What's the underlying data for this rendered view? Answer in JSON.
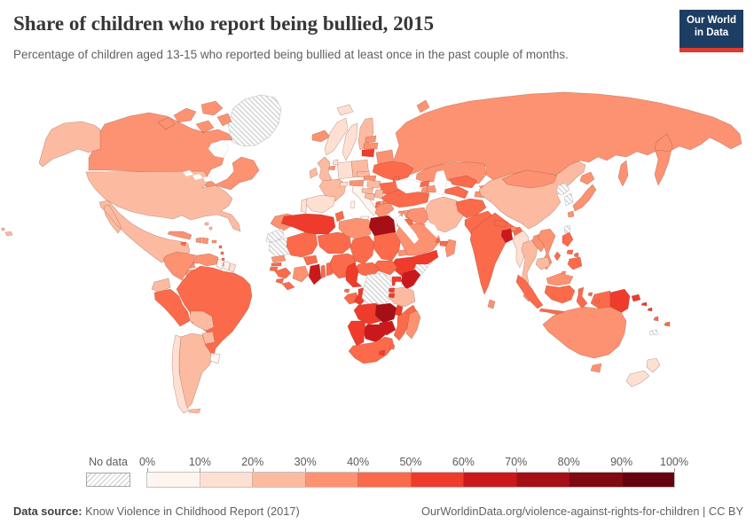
{
  "header": {
    "title": "Share of children who report being bullied, 2015",
    "subtitle": "Percentage of children aged 13-15 who reported being bullied at least once in the past couple of months."
  },
  "logo": {
    "line1": "Our World",
    "line2": "in Data",
    "bg_color": "#1d3d63",
    "accent_color": "#dc3b2f"
  },
  "legend": {
    "no_data_label": "No data",
    "tick_labels": [
      "0%",
      "10%",
      "20%",
      "30%",
      "40%",
      "50%",
      "60%",
      "70%",
      "80%",
      "90%",
      "100%"
    ]
  },
  "footer": {
    "source_label": "Data source:",
    "source": "Know Violence in Childhood Report (2017)",
    "url": "OurWorldinData.org/violence-against-rights-for-children",
    "separator": "|",
    "license": "CC BY"
  },
  "chart_data": {
    "type": "heatmap",
    "subtype": "choropleth-world-map",
    "title": "Share of children who report being bullied, 2015",
    "subtitle": "Percentage of children aged 13-15 who reported being bullied at least once in the past couple of months.",
    "unit": "%",
    "year": 2015,
    "legend_position": "bottom",
    "no_data_style": "diagonal-hatch",
    "bins": [
      {
        "min": 0,
        "max": 10,
        "color": "#fff5f0"
      },
      {
        "min": 10,
        "max": 20,
        "color": "#fee0d2"
      },
      {
        "min": 20,
        "max": 30,
        "color": "#fcbba1"
      },
      {
        "min": 30,
        "max": 40,
        "color": "#fc9272"
      },
      {
        "min": 40,
        "max": 50,
        "color": "#fb6a4a"
      },
      {
        "min": 50,
        "max": 60,
        "color": "#ef3b2c"
      },
      {
        "min": 60,
        "max": 70,
        "color": "#cb181d"
      },
      {
        "min": 70,
        "max": 80,
        "color": "#a50f15"
      },
      {
        "min": 80,
        "max": 90,
        "color": "#7f0a10"
      },
      {
        "min": 90,
        "max": 100,
        "color": "#67000d"
      }
    ],
    "values": {
      "united-states": 25,
      "canada": 37,
      "greenland": null,
      "mexico": 23,
      "guatemala": 21,
      "belize": 35,
      "honduras": 33,
      "el-salvador": 28,
      "nicaragua": 31,
      "costa-rica": 26,
      "panama": 33,
      "cuba": 32,
      "jamaica": 41,
      "haiti": 38,
      "dominican-republic": 34,
      "puerto-rico": 33,
      "bahamas": 24,
      "lesser-antilles": 45,
      "trinidad-and-tobago": 28,
      "colombia": 36,
      "venezuela": 39,
      "guyana": 6,
      "suriname": 8,
      "french-guiana": 17,
      "ecuador": 24,
      "peru": 47,
      "brazil": 43,
      "bolivia": 27,
      "paraguay": 28,
      "chile": 11,
      "argentina": 24,
      "uruguay": 7,
      "iceland": 33,
      "norway": 16,
      "sweden": 13,
      "finland": 22,
      "denmark": 19,
      "united-kingdom": 27,
      "ireland": 24,
      "netherlands": 14,
      "belgium": 32,
      "germany": 17,
      "france": 22,
      "spain": 15,
      "portugal": 18,
      "italy": 6,
      "switzerland": 15,
      "austria": 32,
      "czechia": 26,
      "poland": 23,
      "estonia": 37,
      "latvia": 35,
      "lithuania": 57,
      "belarus": 38,
      "ukraine": 42,
      "moldova": 45,
      "slovakia": 30,
      "hungary": 28,
      "romania": 44,
      "croatia": 25,
      "bosnia-and-herzegovina": 24,
      "serbia": 27,
      "albania": 48,
      "north-macedonia": 35,
      "bulgaria": 35,
      "greece": 34,
      "russia": 38,
      "morocco": 34,
      "western-sahara": null,
      "algeria": 52,
      "tunisia": 40,
      "libya": 36,
      "egypt": 70,
      "mauritania": null,
      "senegal": 38,
      "gambia": 40,
      "guinea-bissau": 40,
      "guinea": 45,
      "sierra-leone": 48,
      "liberia": 44,
      "mali": 42,
      "burkina-faso": 42,
      "ivory-coast": 38,
      "ghana": 64,
      "togo": 48,
      "benin": 46,
      "niger": 41,
      "nigeria": 44,
      "chad": 48,
      "sudan": 42,
      "eritrea": 38,
      "djibouti": 44,
      "ethiopia": 52,
      "somalia": null,
      "south-sudan": 46,
      "central-african-republic": 44,
      "cameroon": 50,
      "equatorial-guinea": 45,
      "gabon": 45,
      "congo": 52,
      "democratic-republic-of-congo": null,
      "uganda": 55,
      "kenya": 62,
      "rwanda": 50,
      "burundi": 50,
      "tanzania": 26,
      "angola": 50,
      "zambia": 70,
      "malawi": 53,
      "mozambique": 43,
      "zimbabwe": 67,
      "botswana": 68,
      "namibia": 52,
      "south-africa": 41,
      "lesotho": 55,
      "eswatini": 43,
      "madagascar": 31,
      "turkey": 42,
      "cyprus": 30,
      "syria": 36,
      "lebanon": 33,
      "israel": 28,
      "jordan": 45,
      "iraq": 34,
      "saudi-arabia": 31,
      "kuwait": 38,
      "qatar": 40,
      "united-arab-emirates": 40,
      "oman": 38,
      "yemen": 50,
      "georgia": 40,
      "armenia": 36,
      "azerbaijan": 38,
      "iran": 22,
      "kazakhstan": 37,
      "turkmenistan": 40,
      "uzbekistan": 40,
      "kyrgyzstan": 37,
      "tajikistan": 34,
      "afghanistan": 45,
      "pakistan": 44,
      "india": 42,
      "nepal": 41,
      "bhutan": 35,
      "bangladesh": 61,
      "sri-lanka": 36,
      "myanmar": 12,
      "china": 23,
      "mongolia": 38,
      "taiwan": null,
      "north-korea": null,
      "south-korea": null,
      "japan": 39,
      "thailand": 28,
      "laos": 30,
      "vietnam": 31,
      "cambodia": 24,
      "malaysia": 33,
      "brunei": 35,
      "philippines": 48,
      "indonesia": 45,
      "timor": null,
      "papua-new-guinea": 52,
      "solomon-islands": 50,
      "vanuatu": 48,
      "fiji": 47,
      "new-caledonia": null,
      "australia": 33,
      "new-zealand": 15
    }
  }
}
